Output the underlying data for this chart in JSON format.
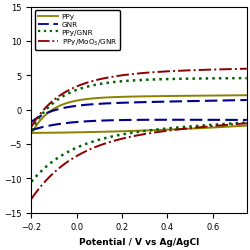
{
  "title": "",
  "xlabel": "Potential / V vs Ag/AgCl",
  "xlim": [
    -0.2,
    0.75
  ],
  "ylim": [
    -15,
    15
  ],
  "xticks": [
    -0.2,
    0.0,
    0.2,
    0.4,
    0.6
  ],
  "yticks": [
    -15,
    -10,
    -5,
    0,
    5,
    10,
    15
  ],
  "background_color": "#ffffff",
  "series": [
    {
      "label": "PPy",
      "color": "#8B8000",
      "linestyle": "solid",
      "linewidth": 1.4
    },
    {
      "label": "GNR",
      "color": "#00008B",
      "linestyle": "dashed",
      "linewidth": 1.5
    },
    {
      "label": "PPy/GNR",
      "color": "#006400",
      "linestyle": "dotted",
      "linewidth": 1.8
    },
    {
      "label": "PPy/MoO$_3$/GNR",
      "color": "#8B0000",
      "linestyle": "dashdot",
      "linewidth": 1.4
    }
  ]
}
